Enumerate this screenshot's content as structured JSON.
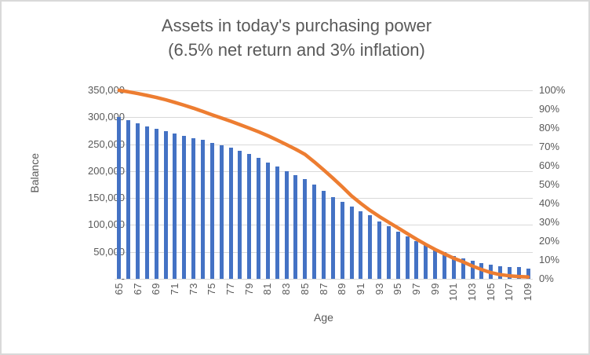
{
  "chart_data": {
    "type": "combo-bar-line",
    "title": "Assets in today's purchasing power",
    "subtitle": "(6.5% net return and 3% inflation)",
    "xlabel": "Age",
    "ylabel": "Balance",
    "grid": true,
    "legend": "none",
    "x": [
      65,
      66,
      67,
      68,
      69,
      70,
      71,
      72,
      73,
      74,
      75,
      76,
      77,
      78,
      79,
      80,
      81,
      82,
      83,
      84,
      85,
      86,
      87,
      88,
      89,
      90,
      91,
      92,
      93,
      94,
      95,
      96,
      97,
      98,
      99,
      100,
      101,
      102,
      103,
      104,
      105,
      106,
      107,
      108,
      109
    ],
    "x_tick_labels": [
      "65",
      "67",
      "69",
      "71",
      "73",
      "75",
      "77",
      "79",
      "81",
      "83",
      "85",
      "87",
      "89",
      "91",
      "93",
      "95",
      "97",
      "99",
      "101",
      "103",
      "105",
      "107",
      "109"
    ],
    "left_axis": {
      "min": 0,
      "max": 350000,
      "step": 50000,
      "tick_labels_top_to_bottom": [
        "350,000",
        "300,000",
        "250,000",
        "200,000",
        "150,000",
        "100,000",
        "50,000",
        "-"
      ]
    },
    "right_axis": {
      "min_percent": 0,
      "max_percent": 100,
      "step_percent": 10,
      "tick_labels_top_to_bottom": [
        "100%",
        "90%",
        "80%",
        "70%",
        "60%",
        "50%",
        "40%",
        "30%",
        "20%",
        "10%",
        "0%"
      ]
    },
    "series": [
      {
        "name": "balance-bars",
        "type": "bar",
        "axis": "left",
        "color": "#4472C4",
        "values": [
          300000,
          294000,
          288500,
          283500,
          279000,
          274500,
          270000,
          265500,
          261500,
          257500,
          253000,
          248000,
          243000,
          237500,
          231500,
          225000,
          216500,
          208500,
          200000,
          193000,
          184500,
          174500,
          163500,
          152000,
          143000,
          133500,
          126000,
          117500,
          106500,
          97000,
          87500,
          78500,
          69500,
          62000,
          55000,
          49000,
          43000,
          37500,
          33000,
          29000,
          26000,
          23500,
          21500,
          22500,
          19000
        ]
      },
      {
        "name": "percent-line",
        "type": "line",
        "axis": "right",
        "color": "#ED7D31",
        "values_percent": [
          100,
          99.2,
          98.3,
          97.3,
          96.2,
          95.0,
          93.6,
          92.1,
          90.5,
          88.8,
          87.0,
          85.3,
          83.6,
          81.8,
          79.9,
          78.0,
          75.9,
          73.6,
          71.2,
          68.7,
          66.0,
          62.0,
          57.8,
          53.4,
          48.8,
          44.0,
          40.0,
          36.3,
          33.0,
          30.0,
          27.0,
          24.0,
          21.0,
          18.2,
          15.6,
          13.2,
          10.9,
          9.0,
          6.8,
          4.9,
          3.3,
          2.2,
          1.6,
          1.2,
          1.0
        ]
      }
    ]
  },
  "colors": {
    "bar": "#4472C4",
    "line": "#ED7D31",
    "text": "#595959",
    "gridline": "#D9D9D9",
    "border": "#D9D9D9",
    "background": "#FFFFFF"
  }
}
